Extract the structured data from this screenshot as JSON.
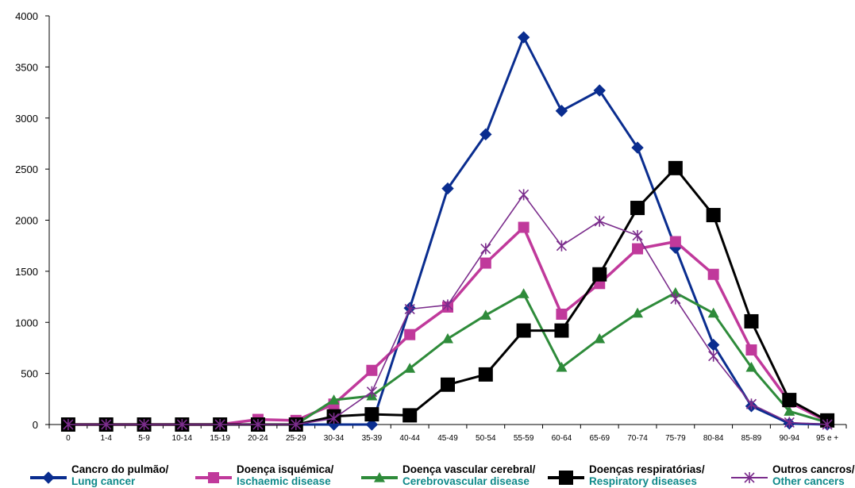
{
  "chart_data": {
    "type": "line",
    "title": "",
    "xlabel": "",
    "ylabel": "",
    "ylim": [
      0,
      4000
    ],
    "yticks": [
      0,
      500,
      1000,
      1500,
      2000,
      2500,
      3000,
      3500,
      4000
    ],
    "grid": false,
    "legend_position": "bottom",
    "categories": [
      "0",
      "1-4",
      "5-9",
      "10-14",
      "15-19",
      "20-24",
      "25-29",
      "30-34",
      "35-39",
      "40-44",
      "45-49",
      "50-54",
      "55-59",
      "60-64",
      "65-69",
      "70-74",
      "75-79",
      "80-84",
      "85-89",
      "90-94",
      "95 e +"
    ],
    "series": [
      {
        "name": "Cancro do pulmão/",
        "name_en": "Lung cancer",
        "color": "#0a2d8f",
        "marker": "diamond",
        "values": [
          0,
          0,
          0,
          0,
          0,
          0,
          0,
          0,
          0,
          1140,
          2310,
          2840,
          3790,
          3070,
          3270,
          2710,
          1730,
          780,
          180,
          10,
          0
        ]
      },
      {
        "name": "Doença isquémica/",
        "name_en": "Ischaemic disease",
        "color": "#c0399b",
        "marker": "square",
        "values": [
          0,
          0,
          0,
          0,
          0,
          50,
          40,
          200,
          530,
          880,
          1150,
          1580,
          1930,
          1080,
          1380,
          1720,
          1790,
          1470,
          730,
          220,
          30
        ]
      },
      {
        "name": "Doença vascular cerebral/",
        "name_en": "Cerebrovascular disease",
        "color": "#2e8b3a",
        "marker": "triangle",
        "values": [
          0,
          0,
          0,
          0,
          0,
          0,
          0,
          240,
          280,
          550,
          840,
          1070,
          1280,
          560,
          840,
          1090,
          1290,
          1090,
          560,
          130,
          20
        ]
      },
      {
        "name": "Doenças respiratórias/",
        "name_en": "Respiratory diseases",
        "color": "#000000",
        "marker": "square-large",
        "values": [
          0,
          0,
          0,
          0,
          0,
          0,
          0,
          80,
          100,
          90,
          390,
          490,
          920,
          920,
          1470,
          2120,
          2510,
          2050,
          1010,
          240,
          40
        ]
      },
      {
        "name": "Outros cancros/",
        "name_en": "Other cancers",
        "color": "#7b2d8c",
        "marker": "star",
        "values": [
          0,
          0,
          0,
          0,
          0,
          0,
          0,
          60,
          320,
          1130,
          1170,
          1720,
          2250,
          1750,
          1990,
          1850,
          1230,
          670,
          200,
          20,
          0
        ]
      }
    ]
  }
}
